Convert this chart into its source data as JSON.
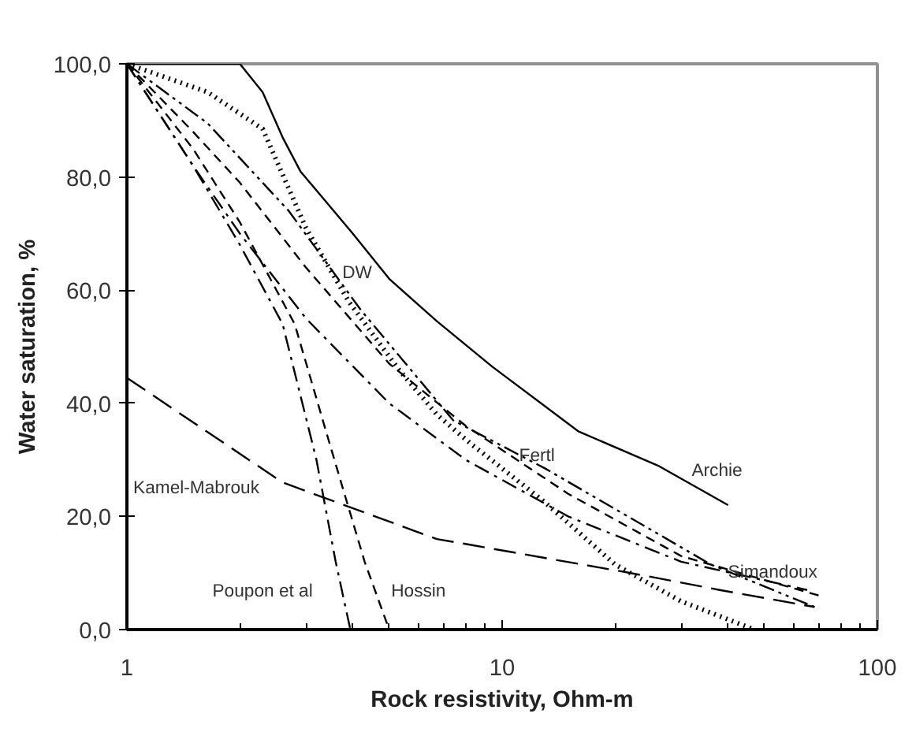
{
  "chart_data": {
    "type": "line",
    "xlabel": "Rock resistivity, Ohm-m",
    "ylabel": "Water saturation, %",
    "log": "x",
    "grid": false,
    "legend": false,
    "marker": "none",
    "xlim": [
      1,
      100
    ],
    "xticks": [
      1,
      10,
      100
    ],
    "ylim": [
      0,
      100
    ],
    "yticks": [
      {
        "value": 0,
        "label": "0,0"
      },
      {
        "value": 20,
        "label": "20,0"
      },
      {
        "value": 40,
        "label": "40,0"
      },
      {
        "value": 60,
        "label": "60,0"
      },
      {
        "value": 80,
        "label": "80,0"
      },
      {
        "value": 100,
        "label": "100,0"
      }
    ],
    "series": [
      {
        "name": "Archie",
        "color": "#000000",
        "line_style": "solid",
        "x": [
          1,
          2.0,
          2.3,
          2.6,
          2.9,
          4,
          5,
          6.7,
          9.4,
          16,
          26,
          40
        ],
        "values": [
          100,
          100,
          95,
          87,
          81,
          70,
          62,
          54.5,
          46.5,
          35,
          29,
          22
        ]
      },
      {
        "name": "DW",
        "color": "#000000",
        "line_style": "dotted",
        "x": [
          1,
          1.64,
          2.3,
          3.0,
          3.9,
          5.3,
          6.7,
          8.2,
          13,
          20,
          30,
          47
        ],
        "values": [
          100,
          95,
          88.5,
          71,
          58,
          46,
          38,
          33,
          22.5,
          11.5,
          5,
          0
        ]
      },
      {
        "name": "Fertl",
        "color": "#000000",
        "line_style": "dashdotdot",
        "x": [
          1,
          1.64,
          2.7,
          4.2,
          7.4,
          13,
          36,
          68
        ],
        "values": [
          100,
          89.5,
          74,
          56.5,
          37,
          28.5,
          11.5,
          4
        ]
      },
      {
        "name": "Simandoux",
        "color": "#000000",
        "line_style": "dashed",
        "x": [
          1,
          1.5,
          2,
          3,
          5,
          8,
          15,
          30,
          70
        ],
        "values": [
          100,
          88,
          79,
          64,
          47,
          36,
          24,
          13,
          6
        ]
      },
      {
        "color": "#000000",
        "line_style": "dashdot",
        "x": [
          1,
          1.5,
          2,
          3,
          5,
          8,
          15,
          30,
          65
        ],
        "values": [
          100,
          82,
          70,
          55,
          40,
          30,
          20,
          12,
          7
        ]
      },
      {
        "name": "Kamel-Mabrouk",
        "color": "#000000",
        "line_style": "longdash",
        "x": [
          1,
          2.6,
          6.7,
          8.2,
          22,
          38,
          68
        ],
        "values": [
          44.5,
          26,
          16,
          15,
          10,
          7,
          4
        ]
      },
      {
        "name": "Poupon et al",
        "color": "#000000",
        "line_style": "dashdot",
        "x": [
          1,
          1.5,
          2,
          2.6,
          3.2,
          3.6,
          3.94
        ],
        "values": [
          100,
          82,
          68,
          54,
          30,
          12,
          0
        ]
      },
      {
        "name": "Hossin",
        "color": "#000000",
        "line_style": "dashed",
        "x": [
          1,
          1.5,
          2,
          2.8,
          3.5,
          4.3,
          5.0,
          10,
          40
        ],
        "values": [
          100,
          85,
          72,
          54,
          32,
          12,
          0,
          0,
          0
        ]
      }
    ]
  }
}
